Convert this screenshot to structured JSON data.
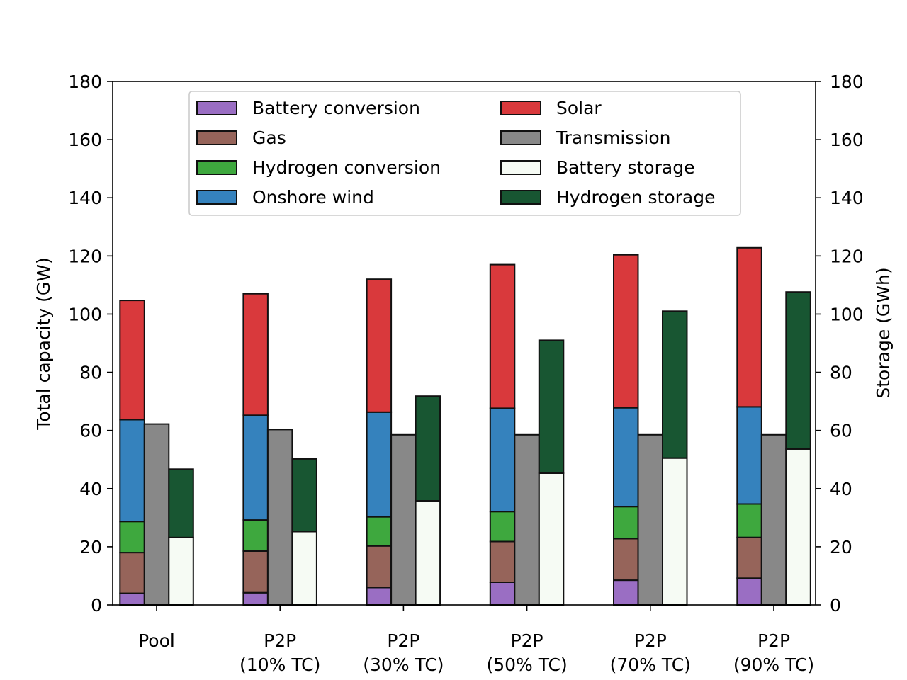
{
  "chart_data": {
    "type": "bar",
    "subtype": "grouped-stacked",
    "categories": [
      [
        "Pool"
      ],
      [
        "P2P",
        "(10% TC)"
      ],
      [
        "P2P",
        "(30% TC)"
      ],
      [
        "P2P",
        "(50% TC)"
      ],
      [
        "P2P",
        "(70% TC)"
      ],
      [
        "P2P",
        "(90% TC)"
      ]
    ],
    "left_axis": {
      "label": "Total capacity (GW)",
      "ylim": [
        0,
        180
      ],
      "ticks": [
        "0",
        "20",
        "40",
        "60",
        "80",
        "100",
        "120",
        "140",
        "160",
        "180"
      ]
    },
    "right_axis": {
      "label": "Storage (GWh)",
      "ylim": [
        0,
        180
      ],
      "ticks": [
        "0",
        "20",
        "40",
        "60",
        "80",
        "100",
        "120",
        "140",
        "160",
        "180"
      ]
    },
    "capacity_stack": [
      {
        "name": "Battery conversion",
        "color": "#9a6ec3",
        "values": [
          4,
          4.2,
          6,
          7.8,
          8.5,
          9.2
        ]
      },
      {
        "name": "Gas",
        "color": "#96645a",
        "values": [
          14,
          14.3,
          14.3,
          14,
          14.3,
          14
        ]
      },
      {
        "name": "Hydrogen conversion",
        "color": "#3ea83e",
        "values": [
          10.7,
          10.7,
          10,
          10.3,
          11,
          11.5
        ]
      },
      {
        "name": "Onshore wind",
        "color": "#3582bd",
        "values": [
          35,
          36,
          36,
          35.5,
          34,
          33.4
        ]
      },
      {
        "name": "Solar",
        "color": "#d9393c",
        "values": [
          41,
          41.8,
          45.7,
          49.4,
          52.6,
          54.7
        ]
      }
    ],
    "transmission": {
      "name": "Transmission",
      "color": "#888888",
      "values": [
        62.2,
        60.3,
        58.5,
        58.5,
        58.5,
        58.5
      ]
    },
    "storage_stack": [
      {
        "name": "Battery storage",
        "color": "#f6fbf4",
        "values": [
          23.2,
          25.2,
          35.8,
          45.3,
          50.5,
          53.6
        ]
      },
      {
        "name": "Hydrogen storage",
        "color": "#185632",
        "values": [
          23.5,
          25,
          36,
          45.7,
          50.5,
          54
        ]
      }
    ],
    "legend": {
      "placement": "top-center",
      "items": [
        {
          "name": "Battery conversion",
          "color": "#9a6ec3"
        },
        {
          "name": "Gas",
          "color": "#96645a"
        },
        {
          "name": "Hydrogen conversion",
          "color": "#3ea83e"
        },
        {
          "name": "Onshore wind",
          "color": "#3582bd"
        },
        {
          "name": "Solar",
          "color": "#d9393c"
        },
        {
          "name": "Transmission",
          "color": "#888888"
        },
        {
          "name": "Battery storage",
          "color": "#f6fbf4"
        },
        {
          "name": "Hydrogen storage",
          "color": "#185632"
        }
      ]
    }
  }
}
